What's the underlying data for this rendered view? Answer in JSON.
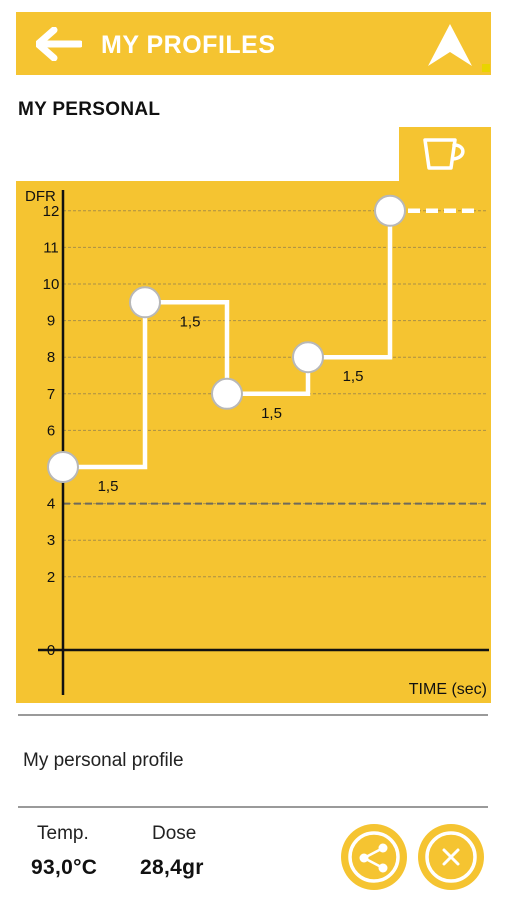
{
  "header": {
    "title": "MY PROFILES",
    "back_icon": "left-arrow-icon",
    "nav_icon": "navigation-arrow-icon"
  },
  "profile": {
    "section_title": "MY PERSONAL",
    "tab_icon": "cup-icon",
    "description": "My personal profile"
  },
  "stats": {
    "temp_label": "Temp.",
    "temp_value": "93,0°C",
    "dose_label": "Dose",
    "dose_value": "28,4gr"
  },
  "actions": {
    "share_icon": "share-icon",
    "close_icon": "close-icon"
  },
  "colors": {
    "accent": "#f5c431",
    "line": "#ffffff",
    "axis": "#111111",
    "grid": "#8a7a50",
    "circle_stroke": "#b8b8b8"
  },
  "chart_data": {
    "type": "line",
    "ylabel": "DFR",
    "xlabel": "TIME (sec)",
    "yticks": [
      "12",
      "11",
      "10",
      "9",
      "8",
      "7",
      "6",
      "4",
      "3",
      "2",
      "0"
    ],
    "threshold": 4,
    "points": [
      {
        "y": 5,
        "duration": "1,5"
      },
      {
        "y": 9.5,
        "duration": "1,5"
      },
      {
        "y": 7,
        "duration": "1,5"
      },
      {
        "y": 8,
        "duration": "1,5"
      },
      {
        "y": 12,
        "duration": ""
      }
    ]
  }
}
